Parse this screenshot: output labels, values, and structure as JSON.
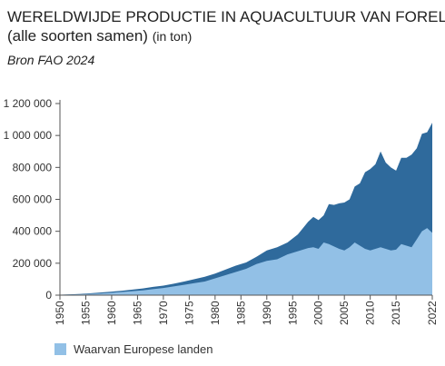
{
  "title_line1": "WERELDWIJDE PRODUCTIE IN AQUACULTUUR VAN FOREL",
  "title_line2_main": "(alle soorten samen)",
  "title_line2_unit": "(in ton)",
  "source": "Bron FAO 2024",
  "colors": {
    "total": "#2f6a9c",
    "europe": "#92c0e6",
    "axis": "#555555",
    "grid": "#e3e3e3"
  },
  "chart_data": {
    "type": "area",
    "title": "WERELDWIJDE PRODUCTIE IN AQUACULTUUR VAN FOREL (alle soorten samen) (in ton)",
    "xlabel": "",
    "ylabel": "",
    "ylim": [
      0,
      1200000
    ],
    "xlim": [
      1950,
      2022
    ],
    "yticks": [
      0,
      200000,
      400000,
      600000,
      800000,
      1000000,
      1200000
    ],
    "ytick_labels": [
      "0",
      "200 000",
      "400 000",
      "600 000",
      "800 000",
      "1 000 000",
      "1 200 000"
    ],
    "xticks": [
      1950,
      1955,
      1960,
      1965,
      1970,
      1975,
      1980,
      1985,
      1990,
      1995,
      2000,
      2005,
      2010,
      2015,
      2022
    ],
    "xtick_labels": [
      "1950",
      "1955",
      "1960",
      "1965",
      "1970",
      "1975",
      "1980",
      "1985",
      "1990",
      "1995",
      "2000",
      "2005",
      "2010",
      "2015",
      "2022"
    ],
    "legend_position": "bottom-left",
    "grid": false,
    "series": [
      {
        "name": "",
        "x": [
          1950,
          1952,
          1954,
          1956,
          1958,
          1960,
          1962,
          1964,
          1966,
          1968,
          1970,
          1972,
          1974,
          1976,
          1978,
          1980,
          1982,
          1984,
          1986,
          1988,
          1990,
          1992,
          1994,
          1996,
          1998,
          1999,
          2000,
          2001,
          2002,
          2003,
          2004,
          2005,
          2006,
          2007,
          2008,
          2009,
          2010,
          2011,
          2012,
          2013,
          2014,
          2015,
          2016,
          2017,
          2018,
          2019,
          2020,
          2021,
          2022
        ],
        "values": [
          3000,
          5000,
          8000,
          12000,
          17000,
          22000,
          28000,
          35000,
          42000,
          52000,
          60000,
          72000,
          85000,
          100000,
          115000,
          135000,
          160000,
          185000,
          205000,
          240000,
          280000,
          300000,
          330000,
          380000,
          460000,
          490000,
          470000,
          500000,
          570000,
          565000,
          575000,
          580000,
          600000,
          680000,
          700000,
          770000,
          790000,
          820000,
          900000,
          830000,
          800000,
          780000,
          860000,
          860000,
          880000,
          920000,
          1010000,
          1020000,
          1080000
        ]
      },
      {
        "name": "Waarvan Europese landen",
        "x": [
          1950,
          1952,
          1954,
          1956,
          1958,
          1960,
          1962,
          1964,
          1966,
          1968,
          1970,
          1972,
          1974,
          1976,
          1978,
          1980,
          1982,
          1984,
          1986,
          1988,
          1990,
          1992,
          1994,
          1996,
          1998,
          1999,
          2000,
          2001,
          2002,
          2003,
          2004,
          2005,
          2006,
          2007,
          2008,
          2009,
          2010,
          2011,
          2012,
          2013,
          2014,
          2015,
          2016,
          2017,
          2018,
          2019,
          2020,
          2021,
          2022
        ],
        "values": [
          2000,
          3500,
          5000,
          8000,
          11000,
          15000,
          20000,
          25000,
          30000,
          38000,
          45000,
          55000,
          65000,
          75000,
          85000,
          105000,
          125000,
          145000,
          165000,
          195000,
          215000,
          225000,
          255000,
          275000,
          295000,
          300000,
          290000,
          330000,
          320000,
          305000,
          290000,
          280000,
          300000,
          330000,
          310000,
          290000,
          280000,
          290000,
          300000,
          290000,
          280000,
          285000,
          320000,
          310000,
          300000,
          350000,
          400000,
          420000,
          390000
        ]
      }
    ]
  }
}
